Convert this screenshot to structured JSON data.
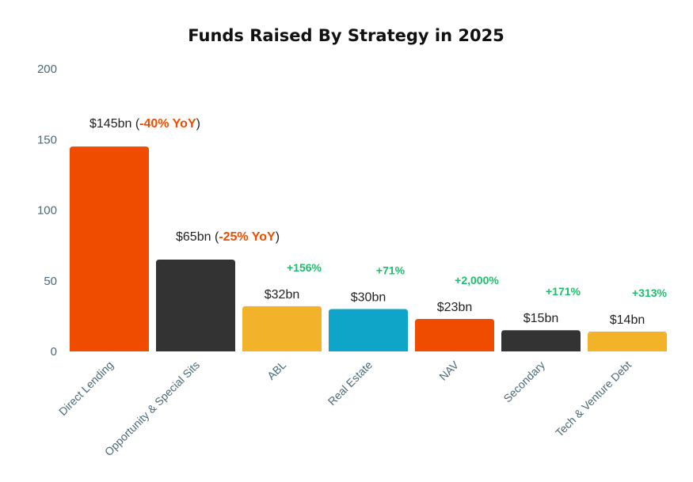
{
  "chart_data": {
    "type": "bar",
    "title": "Funds Raised By Strategy in 2025",
    "xlabel": "",
    "ylabel": "",
    "ylim": [
      0,
      200
    ],
    "yticks": [
      0,
      50,
      100,
      150,
      200
    ],
    "grid": false,
    "categories": [
      "Direct Lending",
      "Opportunity & Special Sits",
      "ABL",
      "Real Estate",
      "NAV",
      "Secondary",
      "Tech & Venture Debt"
    ],
    "values": [
      145,
      65,
      32,
      30,
      23,
      15,
      14
    ],
    "value_labels": [
      "$145bn",
      "$65bn",
      "$32bn",
      "$30bn",
      "$23bn",
      "$15bn",
      "$14bn"
    ],
    "yoy_labels": [
      "-40% YoY",
      "-25% YoY",
      "+156%",
      "+71%",
      "+2,000%",
      "+171%",
      "+313%"
    ],
    "bar_colors": [
      "#ef4c00",
      "#333333",
      "#f2b22a",
      "#0ea5c8",
      "#ef4c00",
      "#333333",
      "#f2b22a"
    ],
    "positive_color": "#1dbf6c",
    "negative_color": "#ef4c00"
  }
}
